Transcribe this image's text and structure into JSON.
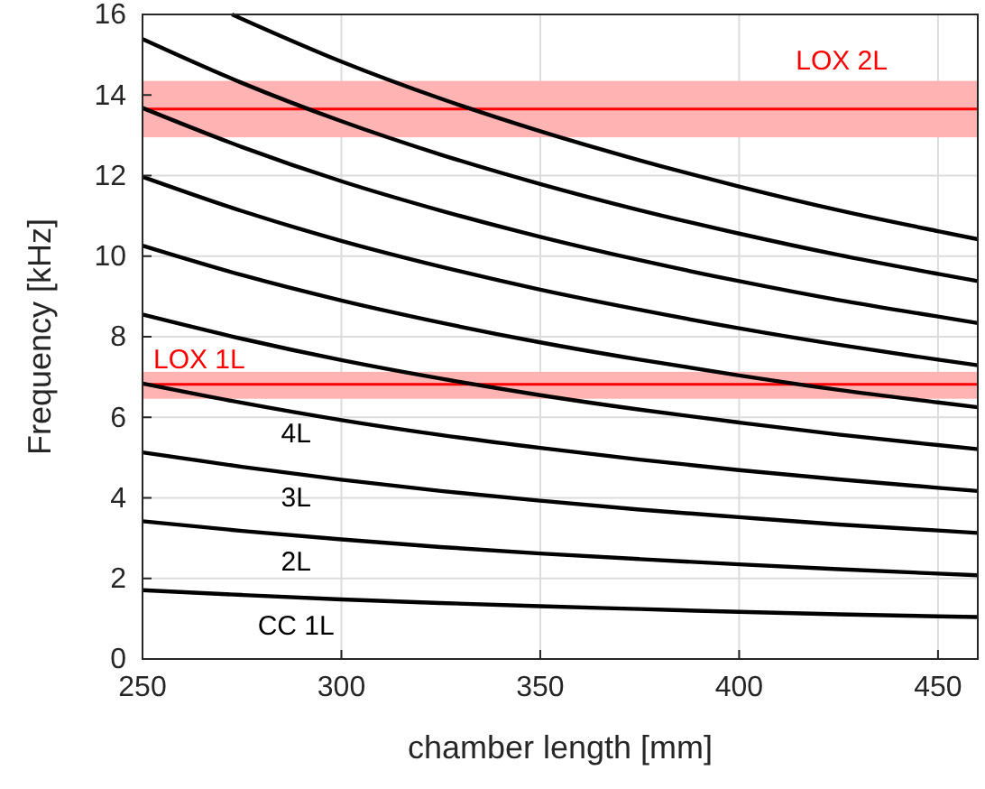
{
  "chart_data": {
    "type": "line",
    "xlabel": "chamber length [mm]",
    "ylabel": "Frequency [kHz]",
    "xlim": [
      250,
      460
    ],
    "ylim": [
      0,
      16
    ],
    "xticks": [
      250,
      300,
      350,
      400,
      450
    ],
    "yticks": [
      0,
      2,
      4,
      6,
      8,
      10,
      12,
      14,
      16
    ],
    "grid": true,
    "marker": "none",
    "line_style": "solid",
    "x": [
      250,
      275,
      300,
      325,
      350,
      375,
      400,
      425,
      450,
      460
    ],
    "series": [
      {
        "name": "CC 1L",
        "color": "#000000",
        "values": [
          1.71,
          1.59,
          1.48,
          1.39,
          1.31,
          1.24,
          1.17,
          1.11,
          1.06,
          1.04
        ]
      },
      {
        "name": "2L",
        "color": "#000000",
        "values": [
          3.42,
          3.18,
          2.97,
          2.78,
          2.62,
          2.48,
          2.35,
          2.23,
          2.12,
          2.08
        ]
      },
      {
        "name": "3L",
        "color": "#000000",
        "values": [
          5.13,
          4.77,
          4.45,
          4.17,
          3.93,
          3.71,
          3.52,
          3.34,
          3.19,
          3.13
        ]
      },
      {
        "name": "4L",
        "color": "#000000",
        "values": [
          6.84,
          6.36,
          5.93,
          5.56,
          5.24,
          4.95,
          4.69,
          4.46,
          4.25,
          4.17
        ]
      },
      {
        "color": "#000000",
        "values": [
          8.55,
          7.95,
          7.42,
          6.96,
          6.55,
          6.19,
          5.87,
          5.57,
          5.31,
          5.21
        ]
      },
      {
        "color": "#000000",
        "values": [
          10.26,
          9.53,
          8.9,
          8.35,
          7.86,
          7.43,
          7.04,
          6.68,
          6.37,
          6.25
        ]
      },
      {
        "color": "#000000",
        "values": [
          11.97,
          11.12,
          10.38,
          9.74,
          9.17,
          8.67,
          8.21,
          7.8,
          7.43,
          7.29
        ]
      },
      {
        "color": "#000000",
        "values": [
          13.68,
          12.71,
          11.86,
          11.13,
          10.48,
          9.9,
          9.38,
          8.91,
          8.5,
          8.34
        ]
      },
      {
        "color": "#000000",
        "values": [
          15.39,
          14.3,
          13.35,
          12.52,
          11.79,
          11.14,
          10.56,
          10.03,
          9.56,
          9.38
        ]
      },
      {
        "color": "#000000",
        "x": [
          272.5,
          275,
          300,
          325,
          350,
          375,
          400,
          425,
          450,
          460
        ],
        "values": [
          16.0,
          15.89,
          14.83,
          13.91,
          13.1,
          12.38,
          11.73,
          11.14,
          10.62,
          10.42
        ]
      }
    ],
    "bands": [
      {
        "axis": "y",
        "from": 12.95,
        "to": 14.35,
        "color": "#ffb3b3"
      },
      {
        "axis": "y",
        "from": 6.46,
        "to": 7.13,
        "color": "#ffb3b3"
      }
    ],
    "ref_lines": [
      {
        "axis": "y",
        "value": 13.65,
        "label": "LOX 2L",
        "color": "#ff0000",
        "line_style": "solid"
      },
      {
        "axis": "y",
        "value": 6.82,
        "label": "LOX 1L",
        "color": "#ff0000",
        "line_style": "solid"
      }
    ]
  }
}
